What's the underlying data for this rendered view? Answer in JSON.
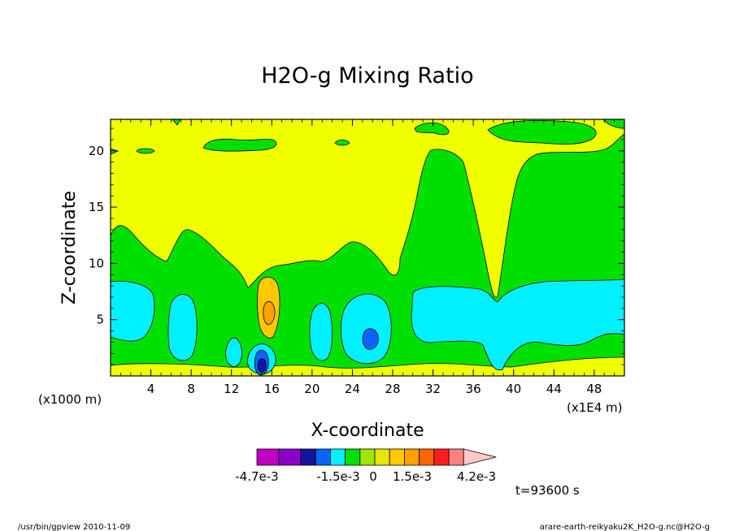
{
  "chart_data": {
    "type": "heatmap",
    "title": "H2O-g Mixing Ratio",
    "xlabel": "X-coordinate",
    "ylabel": "Z-coordinate",
    "x_unit_left": "(x1000 m)",
    "x_unit_right": "(x1E4 m)",
    "xlim": [
      0,
      51
    ],
    "ylim": [
      0,
      22.8
    ],
    "x_ticks": [
      4,
      8,
      12,
      16,
      20,
      24,
      28,
      32,
      36,
      40,
      44,
      48
    ],
    "y_ticks": [
      5,
      10,
      15,
      20
    ],
    "colorbar": {
      "colors": [
        "#c000c0",
        "#8a00c8",
        "#1414a0",
        "#0a64ff",
        "#00f0ff",
        "#00e000",
        "#a0e600",
        "#e6e600",
        "#ffc800",
        "#ffa000",
        "#ff6400",
        "#ff1e1e",
        "#ff8080",
        "#ffc8c8"
      ],
      "labels": [
        "-4.7e-3",
        "-1.5e-3",
        "0",
        "1.5e-3",
        "4.2e-3"
      ]
    },
    "time_label": "t=93600 s",
    "regions": [
      {
        "name": "background",
        "color": "#f0ff00"
      },
      {
        "name": "green-band",
        "color": "#00e000"
      },
      {
        "name": "cyan-cells",
        "color": "#00f0ff"
      },
      {
        "name": "orange-cell",
        "color": "#ffc800"
      },
      {
        "name": "blue-cores",
        "color": "#0a64ff"
      }
    ]
  },
  "footer": {
    "left": "/usr/bin/gpview  2010-11-09",
    "right": "arare-earth-reikyaku2K_H2O-g.nc@H2O-g"
  }
}
